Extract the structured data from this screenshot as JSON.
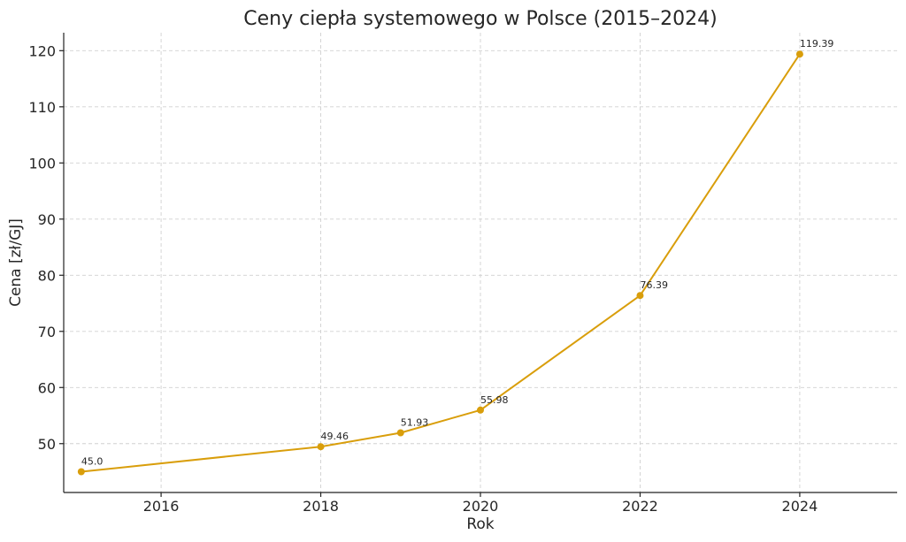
{
  "chart_data": {
    "type": "line",
    "title": "Ceny ciepła systemowego w Polsce (2015–2024)",
    "xlabel": "Rok",
    "ylabel": "Cena [zł/GJ]",
    "xlim": [
      2014.78,
      2025.22
    ],
    "ylim": [
      41.3,
      123.2
    ],
    "x_ticks": [
      2016,
      2018,
      2020,
      2022,
      2024
    ],
    "y_ticks": [
      50,
      60,
      70,
      80,
      90,
      100,
      110,
      120
    ],
    "grid": true,
    "series": [
      {
        "name": "Cena",
        "color": "#d99e0b",
        "x": [
          2015,
          2018,
          2019,
          2020,
          2022,
          2024
        ],
        "values": [
          45.0,
          49.46,
          51.93,
          55.98,
          76.39,
          119.39
        ],
        "labels": [
          "45.0",
          "49.46",
          "51.93",
          "55.98",
          "76.39",
          "119.39"
        ]
      }
    ]
  }
}
